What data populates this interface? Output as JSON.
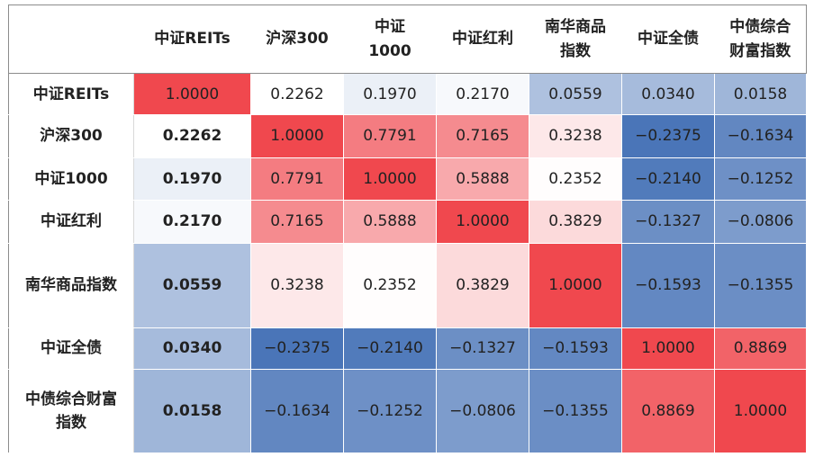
{
  "chart_data": {
    "type": "heatmap",
    "row_labels": [
      "中证REITs",
      "沪深300",
      "中证1000",
      "中证红利",
      "南华商品指数",
      "中证全债",
      "中债综合财富指数"
    ],
    "col_labels": [
      "中证REITs",
      "沪深300",
      "中证1000",
      "中证红利",
      "南华商品指数",
      "中证全债",
      "中债综合财富指数"
    ],
    "col_label_lines": [
      [
        "中证REITs"
      ],
      [
        "沪深300"
      ],
      [
        "中证",
        "1000"
      ],
      [
        "中证红利"
      ],
      [
        "南华商品",
        "指数"
      ],
      [
        "中证全债"
      ],
      [
        "中债综合",
        "财富指数"
      ]
    ],
    "row_label_lines": [
      [
        "中证REITs"
      ],
      [
        "沪深300"
      ],
      [
        "中证1000"
      ],
      [
        "中证红利"
      ],
      [
        "南华商品指数"
      ],
      [
        "中证全债"
      ],
      [
        "中债综合财富",
        "指数"
      ]
    ],
    "values": [
      [
        "1.0000",
        "0.2262",
        "0.1970",
        "0.2170",
        "0.0559",
        "0.0340",
        "0.0158"
      ],
      [
        "0.2262",
        "1.0000",
        "0.7791",
        "0.7165",
        "0.3238",
        "−0.2375",
        "−0.1634"
      ],
      [
        "0.1970",
        "0.7791",
        "1.0000",
        "0.5888",
        "0.2352",
        "−0.2140",
        "−0.1252"
      ],
      [
        "0.2170",
        "0.7165",
        "0.5888",
        "1.0000",
        "0.3829",
        "−0.1327",
        "−0.0806"
      ],
      [
        "0.0559",
        "0.3238",
        "0.2352",
        "0.3829",
        "1.0000",
        "−0.1593",
        "−0.1355"
      ],
      [
        "0.0340",
        "−0.2375",
        "−0.2140",
        "−0.1327",
        "−0.1593",
        "1.0000",
        "0.8869"
      ],
      [
        "0.0158",
        "−0.1634",
        "−0.1252",
        "−0.0806",
        "−0.1355",
        "0.8869",
        "1.0000"
      ]
    ],
    "color_scale": {
      "low": "#4a75b8",
      "mid": "#ffffff",
      "high": "#f0484e"
    }
  }
}
